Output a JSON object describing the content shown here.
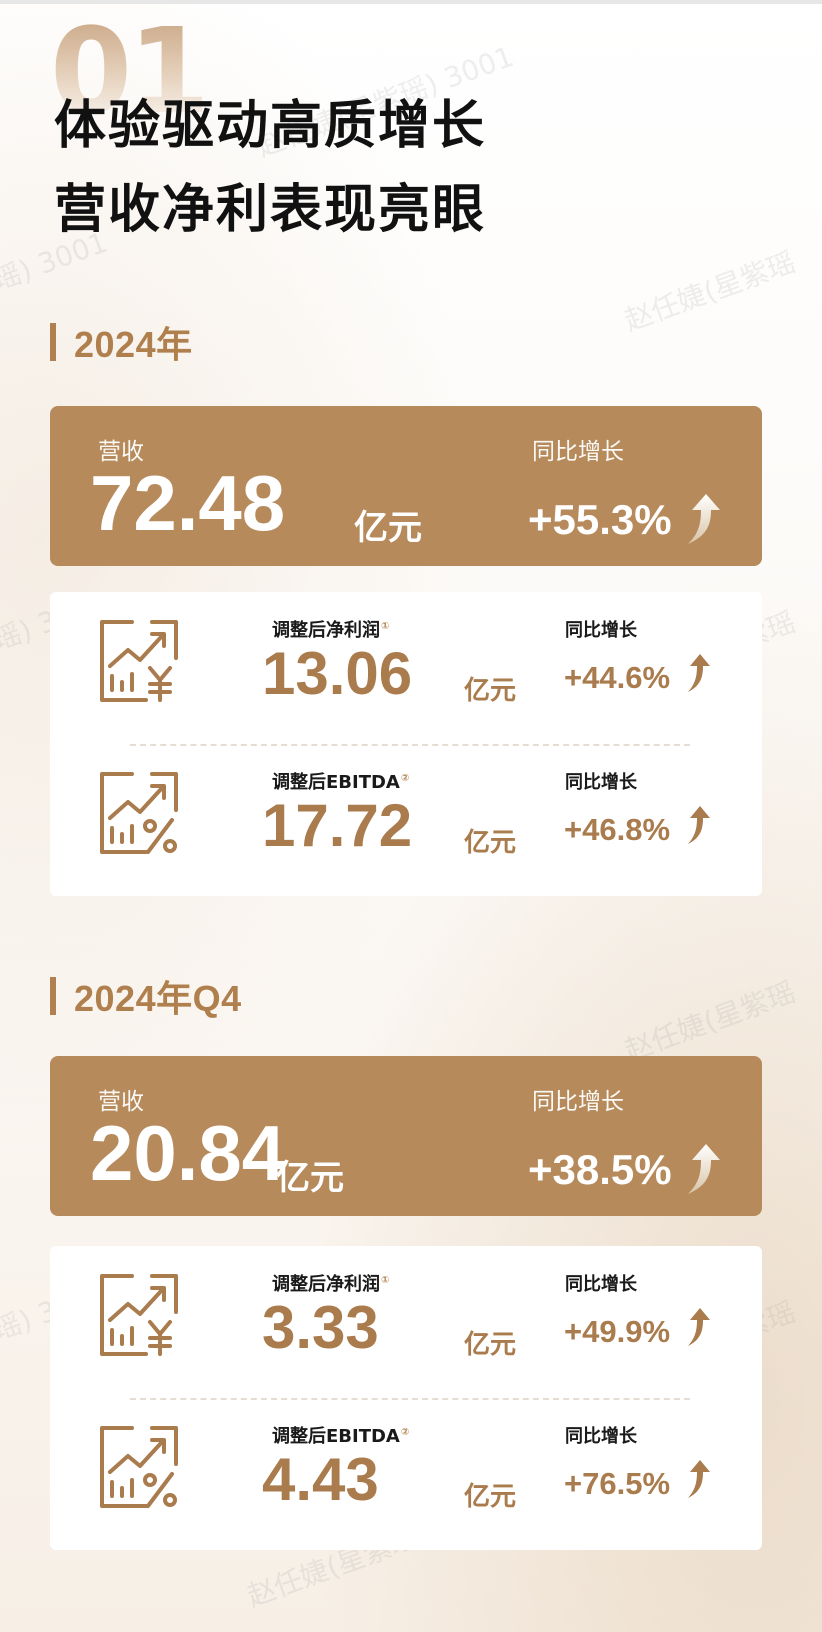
{
  "header": {
    "section_number": "01",
    "title_line1": "体验驱动高质增长",
    "title_line2": "营收净利表现亮眼"
  },
  "sections": [
    {
      "heading": "2024年",
      "revenue": {
        "label": "营收",
        "value": "72.48",
        "unit": "亿元",
        "growth_label": "同比增长",
        "growth": "+55.3%"
      },
      "metrics": [
        {
          "icon": "chart-yen-icon",
          "label": "调整后净利润",
          "note": "①",
          "value": "13.06",
          "unit": "亿元",
          "growth_label": "同比增长",
          "growth": "+44.6%"
        },
        {
          "icon": "chart-percent-icon",
          "label": "调整后EBITDA",
          "note": "②",
          "value": "17.72",
          "unit": "亿元",
          "growth_label": "同比增长",
          "growth": "+46.8%"
        }
      ]
    },
    {
      "heading": "2024年Q4",
      "revenue": {
        "label": "营收",
        "value": "20.84",
        "unit": "亿元",
        "growth_label": "同比增长",
        "growth": "+38.5%"
      },
      "metrics": [
        {
          "icon": "chart-yen-icon",
          "label": "调整后净利润",
          "note": "①",
          "value": "3.33",
          "unit": "亿元",
          "growth_label": "同比增长",
          "growth": "+49.9%"
        },
        {
          "icon": "chart-percent-icon",
          "label": "调整后EBITDA",
          "note": "②",
          "value": "4.43",
          "unit": "亿元",
          "growth_label": "同比增长",
          "growth": "+76.5%"
        }
      ]
    }
  ],
  "watermarks": [
    "赵任婕(星紫瑶) 3001",
    "瑶) 3001",
    "赵任婕(星紫瑶",
    "瑶) 3001",
    "赵任婕(星紫瑶",
    "赵任婕(星紫瑶) 3001",
    "赵任婕(星紫瑶",
    "瑶) 3001",
    "赵任婕(星紫瑶",
    "赵任婕(星紫瑶) 3001"
  ],
  "colors": {
    "accent": "#b68a5b",
    "accent_text": "#a97b4d",
    "heading_text": "#b07f4e"
  }
}
